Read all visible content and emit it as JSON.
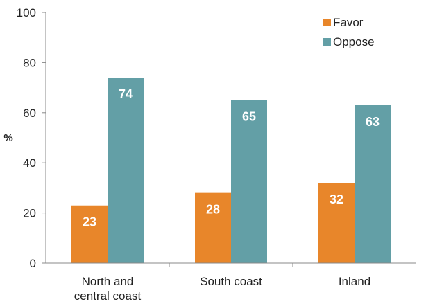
{
  "chart_data": {
    "type": "bar",
    "ylabel": "%",
    "ylim": [
      0,
      100
    ],
    "yticks": [
      0,
      20,
      40,
      60,
      80,
      100
    ],
    "grid": false,
    "legend_position": "top-right",
    "categories": [
      [
        "North and",
        "central coast"
      ],
      [
        "South coast"
      ],
      [
        "Inland"
      ]
    ],
    "series": [
      {
        "name": "Favor",
        "color": "#E8862A",
        "values": [
          23,
          28,
          32
        ]
      },
      {
        "name": "Oppose",
        "color": "#639FA6",
        "values": [
          74,
          65,
          63
        ]
      }
    ],
    "axis_color": "#888888"
  }
}
